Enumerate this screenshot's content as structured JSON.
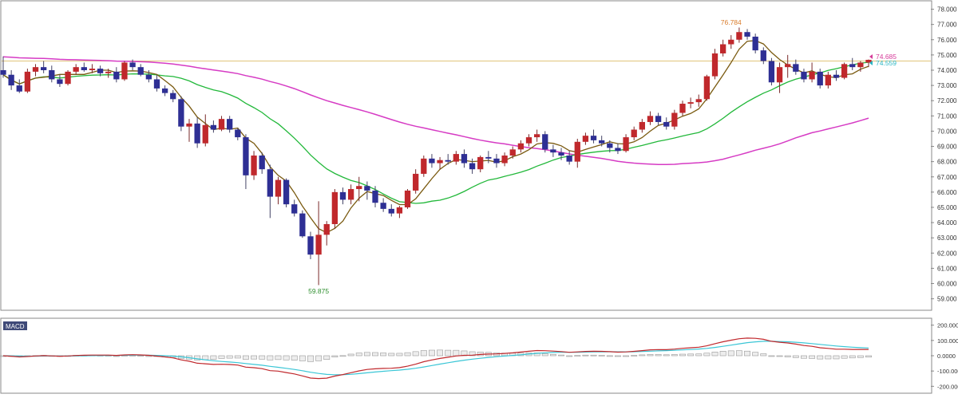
{
  "chart_data": [
    {
      "type": "candlestick",
      "panel": "price",
      "ylim": [
        58.3,
        78.5
      ],
      "y_ticks": [
        "59.000",
        "60.000",
        "61.000",
        "62.000",
        "63.000",
        "64.000",
        "65.000",
        "66.000",
        "67.000",
        "68.000",
        "69.000",
        "70.000",
        "71.000",
        "72.000",
        "73.000",
        "74.000",
        "75.000",
        "76.000",
        "77.000",
        "78.000"
      ],
      "n_bars": 108,
      "candles": [
        [
          74.0,
          74.9,
          73.5,
          73.7
        ],
        [
          73.7,
          74.0,
          72.7,
          73.0
        ],
        [
          73.0,
          73.4,
          72.5,
          72.6
        ],
        [
          72.6,
          74.1,
          72.5,
          73.9
        ],
        [
          73.9,
          74.4,
          73.6,
          74.2
        ],
        [
          74.2,
          74.6,
          73.8,
          74.0
        ],
        [
          74.0,
          74.3,
          73.2,
          73.4
        ],
        [
          73.4,
          73.7,
          72.9,
          73.1
        ],
        [
          73.1,
          74.0,
          73.0,
          73.9
        ],
        [
          73.9,
          74.4,
          73.7,
          74.2
        ],
        [
          74.2,
          74.5,
          73.9,
          74.0
        ],
        [
          74.0,
          74.4,
          73.8,
          74.1
        ],
        [
          74.1,
          74.3,
          73.6,
          73.8
        ],
        [
          73.8,
          74.1,
          73.5,
          73.9
        ],
        [
          73.9,
          74.2,
          73.2,
          73.4
        ],
        [
          73.4,
          74.6,
          73.3,
          74.5
        ],
        [
          74.5,
          74.7,
          74.0,
          74.2
        ],
        [
          74.2,
          74.4,
          73.6,
          73.7
        ],
        [
          73.7,
          74.0,
          73.2,
          73.4
        ],
        [
          73.4,
          73.7,
          72.6,
          72.8
        ],
        [
          72.8,
          73.0,
          72.3,
          72.5
        ],
        [
          72.5,
          72.7,
          71.9,
          72.1
        ],
        [
          72.1,
          72.3,
          70.0,
          70.3
        ],
        [
          70.3,
          70.8,
          69.3,
          70.5
        ],
        [
          70.5,
          70.9,
          68.9,
          69.2
        ],
        [
          69.2,
          71.1,
          69.0,
          70.4
        ],
        [
          70.4,
          70.7,
          69.9,
          70.1
        ],
        [
          70.1,
          71.0,
          70.0,
          70.8
        ],
        [
          70.8,
          71.0,
          69.9,
          70.1
        ],
        [
          70.1,
          70.2,
          69.4,
          69.6
        ],
        [
          69.6,
          69.8,
          66.2,
          67.1
        ],
        [
          67.1,
          68.7,
          66.8,
          68.4
        ],
        [
          68.4,
          68.6,
          67.2,
          67.5
        ],
        [
          67.5,
          67.8,
          64.3,
          65.7
        ],
        [
          65.7,
          67.0,
          65.2,
          66.8
        ],
        [
          66.8,
          66.9,
          65.0,
          65.2
        ],
        [
          65.2,
          65.5,
          64.4,
          64.6
        ],
        [
          64.6,
          64.8,
          63.0,
          63.1
        ],
        [
          63.1,
          63.4,
          61.6,
          61.9
        ],
        [
          61.9,
          65.4,
          59.9,
          63.2
        ],
        [
          63.2,
          64.1,
          62.5,
          63.9
        ],
        [
          63.9,
          66.2,
          63.6,
          66.0
        ],
        [
          66.0,
          66.3,
          65.2,
          65.5
        ],
        [
          65.5,
          66.5,
          65.2,
          66.2
        ],
        [
          66.2,
          67.0,
          65.4,
          66.4
        ],
        [
          66.4,
          66.7,
          65.5,
          66.1
        ],
        [
          66.1,
          66.4,
          65.0,
          65.3
        ],
        [
          65.3,
          65.6,
          64.7,
          64.9
        ],
        [
          64.9,
          65.2,
          64.4,
          64.6
        ],
        [
          64.6,
          65.1,
          64.3,
          65.0
        ],
        [
          65.0,
          66.2,
          64.9,
          66.1
        ],
        [
          66.1,
          67.5,
          65.9,
          67.2
        ],
        [
          67.2,
          68.4,
          67.0,
          68.2
        ],
        [
          68.2,
          68.5,
          67.6,
          67.9
        ],
        [
          67.9,
          68.3,
          67.5,
          68.1
        ],
        [
          68.1,
          68.5,
          67.8,
          68.0
        ],
        [
          68.0,
          68.7,
          67.8,
          68.5
        ],
        [
          68.5,
          68.8,
          67.6,
          67.9
        ],
        [
          67.9,
          68.2,
          67.2,
          67.5
        ],
        [
          67.5,
          68.4,
          67.3,
          68.3
        ],
        [
          68.3,
          68.7,
          67.9,
          68.2
        ],
        [
          68.2,
          68.5,
          67.6,
          67.9
        ],
        [
          67.9,
          68.6,
          67.7,
          68.4
        ],
        [
          68.4,
          69.0,
          68.2,
          68.8
        ],
        [
          68.8,
          69.4,
          68.6,
          69.2
        ],
        [
          69.2,
          69.8,
          69.0,
          69.6
        ],
        [
          69.6,
          70.1,
          69.3,
          69.8
        ],
        [
          69.8,
          70.0,
          68.6,
          68.8
        ],
        [
          68.8,
          69.1,
          68.3,
          68.6
        ],
        [
          68.6,
          68.9,
          68.1,
          68.4
        ],
        [
          68.4,
          68.7,
          67.8,
          68.0
        ],
        [
          68.0,
          69.5,
          67.6,
          69.3
        ],
        [
          69.3,
          69.9,
          69.1,
          69.7
        ],
        [
          69.7,
          70.1,
          69.2,
          69.4
        ],
        [
          69.4,
          69.7,
          69.0,
          69.2
        ],
        [
          69.2,
          69.4,
          68.6,
          68.9
        ],
        [
          68.9,
          69.2,
          68.5,
          68.7
        ],
        [
          68.7,
          69.8,
          68.6,
          69.6
        ],
        [
          69.6,
          70.3,
          69.4,
          70.1
        ],
        [
          70.1,
          70.8,
          69.9,
          70.6
        ],
        [
          70.6,
          71.3,
          70.4,
          71.0
        ],
        [
          71.0,
          71.2,
          70.4,
          70.6
        ],
        [
          70.6,
          70.9,
          70.1,
          70.3
        ],
        [
          70.3,
          71.4,
          70.1,
          71.2
        ],
        [
          71.2,
          72.0,
          71.0,
          71.8
        ],
        [
          71.8,
          72.2,
          71.5,
          71.9
        ],
        [
          71.9,
          72.4,
          71.6,
          72.1
        ],
        [
          72.1,
          73.7,
          72.0,
          73.6
        ],
        [
          73.6,
          75.4,
          73.4,
          75.1
        ],
        [
          75.1,
          76.0,
          74.9,
          75.7
        ],
        [
          75.7,
          76.3,
          75.4,
          76.0
        ],
        [
          76.0,
          76.8,
          75.8,
          76.5
        ],
        [
          76.5,
          76.7,
          76.0,
          76.2
        ],
        [
          76.2,
          76.4,
          75.1,
          75.3
        ],
        [
          75.3,
          75.5,
          74.4,
          74.6
        ],
        [
          74.6,
          74.8,
          73.0,
          73.2
        ],
        [
          73.2,
          74.5,
          72.5,
          74.2
        ],
        [
          74.2,
          75.0,
          73.5,
          74.4
        ],
        [
          74.4,
          74.7,
          73.7,
          73.9
        ],
        [
          73.9,
          74.1,
          73.2,
          73.4
        ],
        [
          73.4,
          74.5,
          73.2,
          73.9
        ],
        [
          73.9,
          74.1,
          72.8,
          73.0
        ],
        [
          73.0,
          73.9,
          72.8,
          73.7
        ],
        [
          73.7,
          74.0,
          73.3,
          73.5
        ],
        [
          73.5,
          74.5,
          73.4,
          74.4
        ],
        [
          74.4,
          74.8,
          74.0,
          74.2
        ],
        [
          74.2,
          74.6,
          73.9,
          74.5
        ],
        [
          74.5,
          74.7,
          74.2,
          74.68
        ]
      ],
      "reference_line": 74.6,
      "moving_averages": [
        "ma-short",
        "ma-medium",
        "ma-long"
      ],
      "annotations": [
        {
          "label": "76.784",
          "bar": 90,
          "value": 76.78
        },
        {
          "label": "59.875",
          "bar": 39,
          "value": 59.88
        }
      ],
      "last_value_labels": [
        {
          "label": "74.685",
          "color": "#d63b9a"
        },
        {
          "label": "74.559",
          "color": "#2bb6c4"
        }
      ],
      "colors": {
        "up": "#c0282c",
        "down": "#2e2f94",
        "ma_short": "#7a5a10",
        "ma_medium": "#22b83a",
        "ma_long": "#d63bc4",
        "reference_line": "#e0c47a",
        "high_label": "#d97b2a",
        "low_label": "#2e8f2e"
      }
    },
    {
      "type": "macd",
      "panel": "indicator",
      "title": "MACD",
      "ylim": [
        -240000,
        240000
      ],
      "y_ticks": [
        "200.0000",
        "100.0000",
        "0.0000",
        "-100.0000",
        "-200.0000"
      ],
      "y_tick_values": [
        200000,
        100000,
        0,
        -100000,
        -200000
      ],
      "colors": {
        "macd": "#c0282c",
        "signal": "#3bc6d6",
        "histogram": "#bdbdbd"
      }
    }
  ]
}
